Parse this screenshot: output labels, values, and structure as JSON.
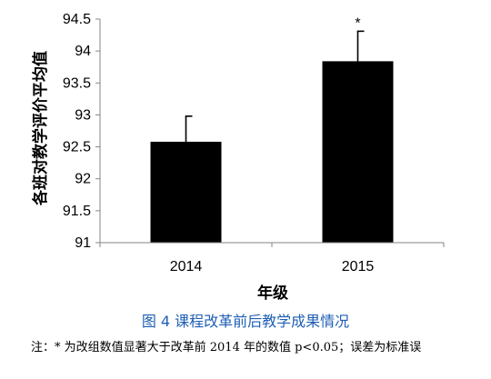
{
  "chart_data": {
    "type": "bar",
    "categories": [
      "2014",
      "2015"
    ],
    "values": [
      92.58,
      93.84
    ],
    "error_upper": [
      0.4,
      0.47
    ],
    "annotations": [
      "",
      "*"
    ],
    "xlabel": "年级",
    "ylabel": "各班对教学评价平均值",
    "ylim": [
      91,
      94.5
    ],
    "yticks": [
      "91",
      "91.5",
      "92",
      "92.5",
      "93",
      "93.5",
      "94",
      "94.5"
    ],
    "grid": false,
    "bar_color": "#000000"
  },
  "caption": "图 4 课程改革前后教学成果情况",
  "note": "注：* 为改组数值显著大于改革前 2014 年的数值 p<0.05；误差为标准误",
  "colors": {
    "caption": "#1f5fb4",
    "bars": "#000000"
  }
}
